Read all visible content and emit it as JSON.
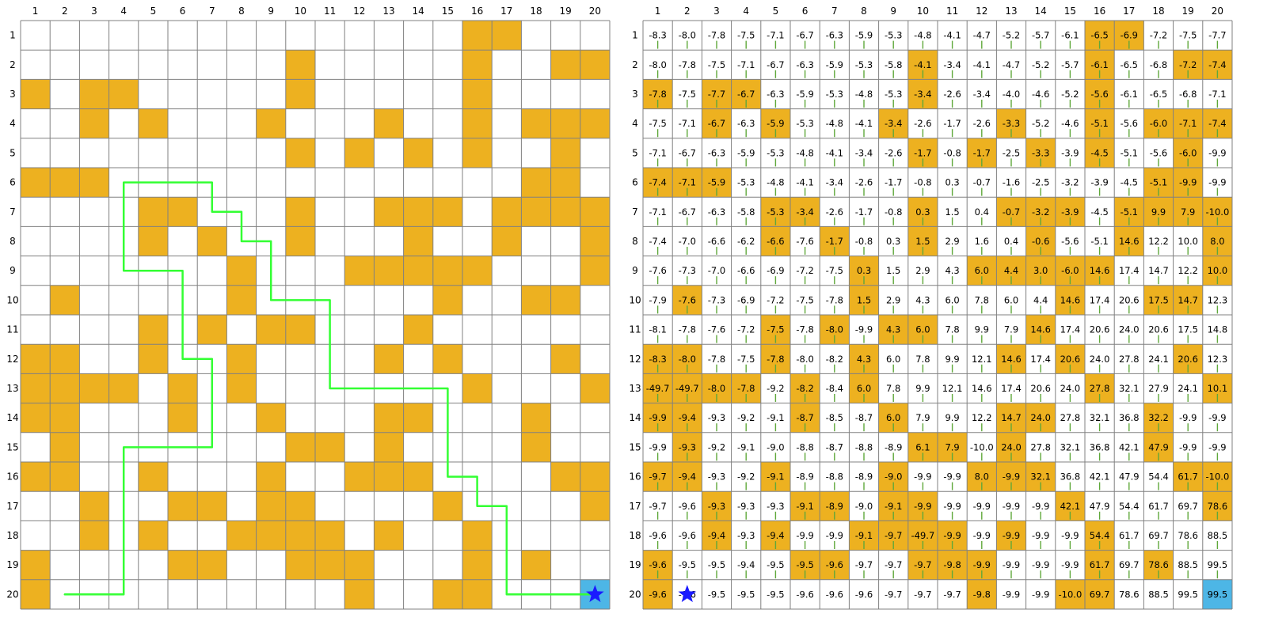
{
  "grid": {
    "rows": 20,
    "cols": 20,
    "col_labels": [
      "1",
      "2",
      "3",
      "4",
      "5",
      "6",
      "7",
      "8",
      "9",
      "10",
      "11",
      "12",
      "13",
      "14",
      "15",
      "16",
      "17",
      "18",
      "19",
      "20"
    ],
    "row_labels": [
      "1",
      "2",
      "3",
      "4",
      "5",
      "6",
      "7",
      "8",
      "9",
      "10",
      "11",
      "12",
      "13",
      "14",
      "15",
      "16",
      "17",
      "18",
      "19",
      "20"
    ],
    "wall_cells": [
      [
        1,
        16
      ],
      [
        1,
        17
      ],
      [
        2,
        10
      ],
      [
        2,
        16
      ],
      [
        2,
        19
      ],
      [
        2,
        20
      ],
      [
        3,
        1
      ],
      [
        3,
        3
      ],
      [
        3,
        4
      ],
      [
        3,
        10
      ],
      [
        3,
        16
      ],
      [
        4,
        3
      ],
      [
        4,
        5
      ],
      [
        4,
        9
      ],
      [
        4,
        13
      ],
      [
        4,
        16
      ],
      [
        4,
        18
      ],
      [
        4,
        19
      ],
      [
        4,
        20
      ],
      [
        5,
        10
      ],
      [
        5,
        12
      ],
      [
        5,
        14
      ],
      [
        5,
        16
      ],
      [
        5,
        19
      ],
      [
        6,
        1
      ],
      [
        6,
        2
      ],
      [
        6,
        3
      ],
      [
        6,
        18
      ],
      [
        6,
        19
      ],
      [
        7,
        5
      ],
      [
        7,
        6
      ],
      [
        7,
        10
      ],
      [
        7,
        13
      ],
      [
        7,
        14
      ],
      [
        7,
        15
      ],
      [
        7,
        17
      ],
      [
        7,
        18
      ],
      [
        7,
        19
      ],
      [
        7,
        20
      ],
      [
        8,
        5
      ],
      [
        8,
        7
      ],
      [
        8,
        10
      ],
      [
        8,
        14
      ],
      [
        8,
        17
      ],
      [
        8,
        20
      ],
      [
        9,
        8
      ],
      [
        9,
        12
      ],
      [
        9,
        13
      ],
      [
        9,
        14
      ],
      [
        9,
        15
      ],
      [
        9,
        16
      ],
      [
        9,
        20
      ],
      [
        10,
        2
      ],
      [
        10,
        8
      ],
      [
        10,
        15
      ],
      [
        10,
        18
      ],
      [
        10,
        19
      ],
      [
        11,
        5
      ],
      [
        11,
        7
      ],
      [
        11,
        9
      ],
      [
        11,
        10
      ],
      [
        11,
        14
      ],
      [
        12,
        1
      ],
      [
        12,
        2
      ],
      [
        12,
        5
      ],
      [
        12,
        8
      ],
      [
        12,
        13
      ],
      [
        12,
        15
      ],
      [
        12,
        19
      ],
      [
        13,
        1
      ],
      [
        13,
        2
      ],
      [
        13,
        3
      ],
      [
        13,
        4
      ],
      [
        13,
        6
      ],
      [
        13,
        8
      ],
      [
        13,
        16
      ],
      [
        13,
        20
      ],
      [
        14,
        1
      ],
      [
        14,
        2
      ],
      [
        14,
        6
      ],
      [
        14,
        9
      ],
      [
        14,
        13
      ],
      [
        14,
        14
      ],
      [
        14,
        18
      ],
      [
        15,
        2
      ],
      [
        15,
        10
      ],
      [
        15,
        11
      ],
      [
        15,
        13
      ],
      [
        15,
        18
      ],
      [
        16,
        1
      ],
      [
        16,
        2
      ],
      [
        16,
        5
      ],
      [
        16,
        9
      ],
      [
        16,
        12
      ],
      [
        16,
        13
      ],
      [
        16,
        14
      ],
      [
        16,
        19
      ],
      [
        16,
        20
      ],
      [
        17,
        3
      ],
      [
        17,
        6
      ],
      [
        17,
        7
      ],
      [
        17,
        9
      ],
      [
        17,
        10
      ],
      [
        17,
        15
      ],
      [
        17,
        20
      ],
      [
        18,
        3
      ],
      [
        18,
        5
      ],
      [
        18,
        8
      ],
      [
        18,
        9
      ],
      [
        18,
        10
      ],
      [
        18,
        11
      ],
      [
        18,
        13
      ],
      [
        18,
        16
      ],
      [
        19,
        1
      ],
      [
        19,
        6
      ],
      [
        19,
        7
      ],
      [
        19,
        10
      ],
      [
        19,
        11
      ],
      [
        19,
        12
      ],
      [
        19,
        16
      ],
      [
        19,
        18
      ],
      [
        20,
        1
      ],
      [
        20,
        12
      ],
      [
        20,
        15
      ],
      [
        20,
        16
      ]
    ],
    "goal_cell": [
      20,
      20
    ],
    "start_cell": [
      20,
      2
    ]
  },
  "path": [
    [
      20,
      2
    ],
    [
      20,
      4
    ],
    [
      15,
      4
    ],
    [
      15,
      7
    ],
    [
      12,
      7
    ],
    [
      12,
      6
    ],
    [
      9,
      6
    ],
    [
      9,
      4
    ],
    [
      6,
      4
    ],
    [
      6,
      7
    ],
    [
      7,
      7
    ],
    [
      7,
      8
    ],
    [
      8,
      8
    ],
    [
      8,
      9
    ],
    [
      10,
      9
    ],
    [
      10,
      11
    ],
    [
      13,
      11
    ],
    [
      13,
      15
    ],
    [
      16,
      15
    ],
    [
      16,
      16
    ],
    [
      17,
      16
    ],
    [
      17,
      17
    ],
    [
      20,
      17
    ],
    [
      20,
      20
    ]
  ],
  "values": [
    [
      "-8.3",
      "-8.0",
      "-7.8",
      "-7.5",
      "-7.1",
      "-6.7",
      "-6.3",
      "-5.9",
      "-5.3",
      "-4.8",
      "-4.1",
      "-4.7",
      "-5.2",
      "-5.7",
      "-6.1",
      "-6.5",
      "-6.9",
      "-7.2",
      "-7.5",
      "-7.7"
    ],
    [
      "-8.0",
      "-7.8",
      "-7.5",
      "-7.1",
      "-6.7",
      "-6.3",
      "-5.9",
      "-5.3",
      "-5.8",
      "-4.1",
      "-3.4",
      "-4.1",
      "-4.7",
      "-5.2",
      "-5.7",
      "-6.1",
      "-6.5",
      "-6.8",
      "-7.2",
      "-7.4"
    ],
    [
      "-7.8",
      "-7.5",
      "-7.7",
      "-6.7",
      "-6.3",
      "-5.9",
      "-5.3",
      "-4.8",
      "-5.3",
      "-3.4",
      "-2.6",
      "-3.4",
      "-4.0",
      "-4.6",
      "-5.2",
      "-5.6",
      "-6.1",
      "-6.5",
      "-6.8",
      "-7.1"
    ],
    [
      "-7.5",
      "-7.1",
      "-6.7",
      "-6.3",
      "-5.9",
      "-5.3",
      "-4.8",
      "-4.1",
      "-3.4",
      "-2.6",
      "-1.7",
      "-2.6",
      "-3.3",
      "-5.2",
      "-4.6",
      "-5.1",
      "-5.6",
      "-6.0",
      "-7.1",
      "-7.4"
    ],
    [
      "-7.1",
      "-6.7",
      "-6.3",
      "-5.9",
      "-5.3",
      "-4.8",
      "-4.1",
      "-3.4",
      "-2.6",
      "-1.7",
      "-0.8",
      "-1.7",
      "-2.5",
      "-3.3",
      "-3.9",
      "-4.5",
      "-5.1",
      "-5.6",
      "-6.0",
      "-9.9"
    ],
    [
      "-7.4",
      "-7.1",
      "-5.9",
      "-5.3",
      "-4.8",
      "-4.1",
      "-3.4",
      "-2.6",
      "-1.7",
      "-0.8",
      "0.3",
      "-0.7",
      "-1.6",
      "-2.5",
      "-3.2",
      "-3.9",
      "-4.5",
      "-5.1",
      "-9.9",
      "-9.9"
    ],
    [
      "-7.1",
      "-6.7",
      "-6.3",
      "-5.8",
      "-5.3",
      "-3.4",
      "-2.6",
      "-1.7",
      "-0.8",
      "0.3",
      "1.5",
      "0.4",
      "-0.7",
      "-3.2",
      "-3.9",
      "-4.5",
      "-5.1",
      "9.9",
      "7.9",
      "-10.0"
    ],
    [
      "-7.4",
      "-7.0",
      "-6.6",
      "-6.2",
      "-6.6",
      "-7.6",
      "-1.7",
      "-0.8",
      "0.3",
      "1.5",
      "2.9",
      "1.6",
      "0.4",
      "-0.6",
      "-5.6",
      "-5.1",
      "14.6",
      "12.2",
      "10.0",
      "8.0"
    ],
    [
      "-7.6",
      "-7.3",
      "-7.0",
      "-6.6",
      "-6.9",
      "-7.2",
      "-7.5",
      "0.3",
      "1.5",
      "2.9",
      "4.3",
      "6.0",
      "4.4",
      "3.0",
      "-6.0",
      "14.6",
      "17.4",
      "14.7",
      "12.2",
      "10.0"
    ],
    [
      "-7.9",
      "-7.6",
      "-7.3",
      "-6.9",
      "-7.2",
      "-7.5",
      "-7.8",
      "1.5",
      "2.9",
      "4.3",
      "6.0",
      "7.8",
      "6.0",
      "4.4",
      "14.6",
      "17.4",
      "20.6",
      "17.5",
      "14.7",
      "12.3"
    ],
    [
      "-8.1",
      "-7.8",
      "-7.6",
      "-7.2",
      "-7.5",
      "-7.8",
      "-8.0",
      "-9.9",
      "4.3",
      "6.0",
      "7.8",
      "9.9",
      "7.9",
      "14.6",
      "17.4",
      "20.6",
      "24.0",
      "20.6",
      "17.5",
      "14.8"
    ],
    [
      "-8.3",
      "-8.0",
      "-7.8",
      "-7.5",
      "-7.8",
      "-8.0",
      "-8.2",
      "4.3",
      "6.0",
      "7.8",
      "9.9",
      "12.1",
      "14.6",
      "17.4",
      "20.6",
      "24.0",
      "27.8",
      "24.1",
      "20.6",
      "12.3"
    ],
    [
      "-49.7",
      "-49.7",
      "-8.0",
      "-7.8",
      "-9.2",
      "-8.2",
      "-8.4",
      "6.0",
      "7.8",
      "9.9",
      "12.1",
      "14.6",
      "17.4",
      "20.6",
      "24.0",
      "27.8",
      "32.1",
      "27.9",
      "24.1",
      "10.1"
    ],
    [
      "-9.9",
      "-9.4",
      "-9.3",
      "-9.2",
      "-9.1",
      "-8.7",
      "-8.5",
      "-8.7",
      "6.0",
      "7.9",
      "9.9",
      "12.2",
      "14.7",
      "24.0",
      "27.8",
      "32.1",
      "36.8",
      "32.2",
      "-9.9",
      "-9.9"
    ],
    [
      "-9.9",
      "-9.3",
      "-9.2",
      "-9.1",
      "-9.0",
      "-8.8",
      "-8.7",
      "-8.8",
      "-8.9",
      "6.1",
      "7.9",
      "-10.0",
      "24.0",
      "27.8",
      "32.1",
      "36.8",
      "42.1",
      "47.9",
      "-9.9",
      "-9.9"
    ],
    [
      "-9.7",
      "-9.4",
      "-9.3",
      "-9.2",
      "-9.1",
      "-8.9",
      "-8.8",
      "-8.9",
      "-9.0",
      "-9.9",
      "-9.9",
      "8.0",
      "-9.9",
      "32.1",
      "36.8",
      "42.1",
      "47.9",
      "54.4",
      "61.7",
      "-10.0"
    ],
    [
      "-9.7",
      "-9.6",
      "-9.3",
      "-9.3",
      "-9.3",
      "-9.1",
      "-8.9",
      "-9.0",
      "-9.1",
      "-9.9",
      "-9.9",
      "-9.9",
      "-9.9",
      "-9.9",
      "42.1",
      "47.9",
      "54.4",
      "61.7",
      "69.7",
      "78.6"
    ],
    [
      "-9.6",
      "-9.6",
      "-9.4",
      "-9.3",
      "-9.4",
      "-9.9",
      "-9.9",
      "-9.1",
      "-9.7",
      "-49.7",
      "-9.9",
      "-9.9",
      "-9.9",
      "-9.9",
      "-9.9",
      "54.4",
      "61.7",
      "69.7",
      "78.6",
      "88.5"
    ],
    [
      "-9.6",
      "-9.5",
      "-9.5",
      "-9.4",
      "-9.5",
      "-9.5",
      "-9.6",
      "-9.7",
      "-9.7",
      "-9.7",
      "-9.8",
      "-9.9",
      "-9.9",
      "-9.9",
      "-9.9",
      "61.7",
      "69.7",
      "78.6",
      "88.5",
      "99.5"
    ],
    [
      "-9.6",
      "-9.6",
      "-9.5",
      "-9.5",
      "-9.5",
      "-9.6",
      "-9.6",
      "-9.6",
      "-9.7",
      "-9.7",
      "-9.7",
      "-9.8",
      "-9.9",
      "-9.9",
      "-10.0",
      "69.7",
      "78.6",
      "88.5",
      "99.5",
      "99.5"
    ]
  ],
  "colors": {
    "wall": "#edb120",
    "goal": "#4db6e6",
    "path": "#33ff33",
    "arrow": "#5fa83a",
    "star": "#1a1aff",
    "grid_line": "#808080"
  }
}
